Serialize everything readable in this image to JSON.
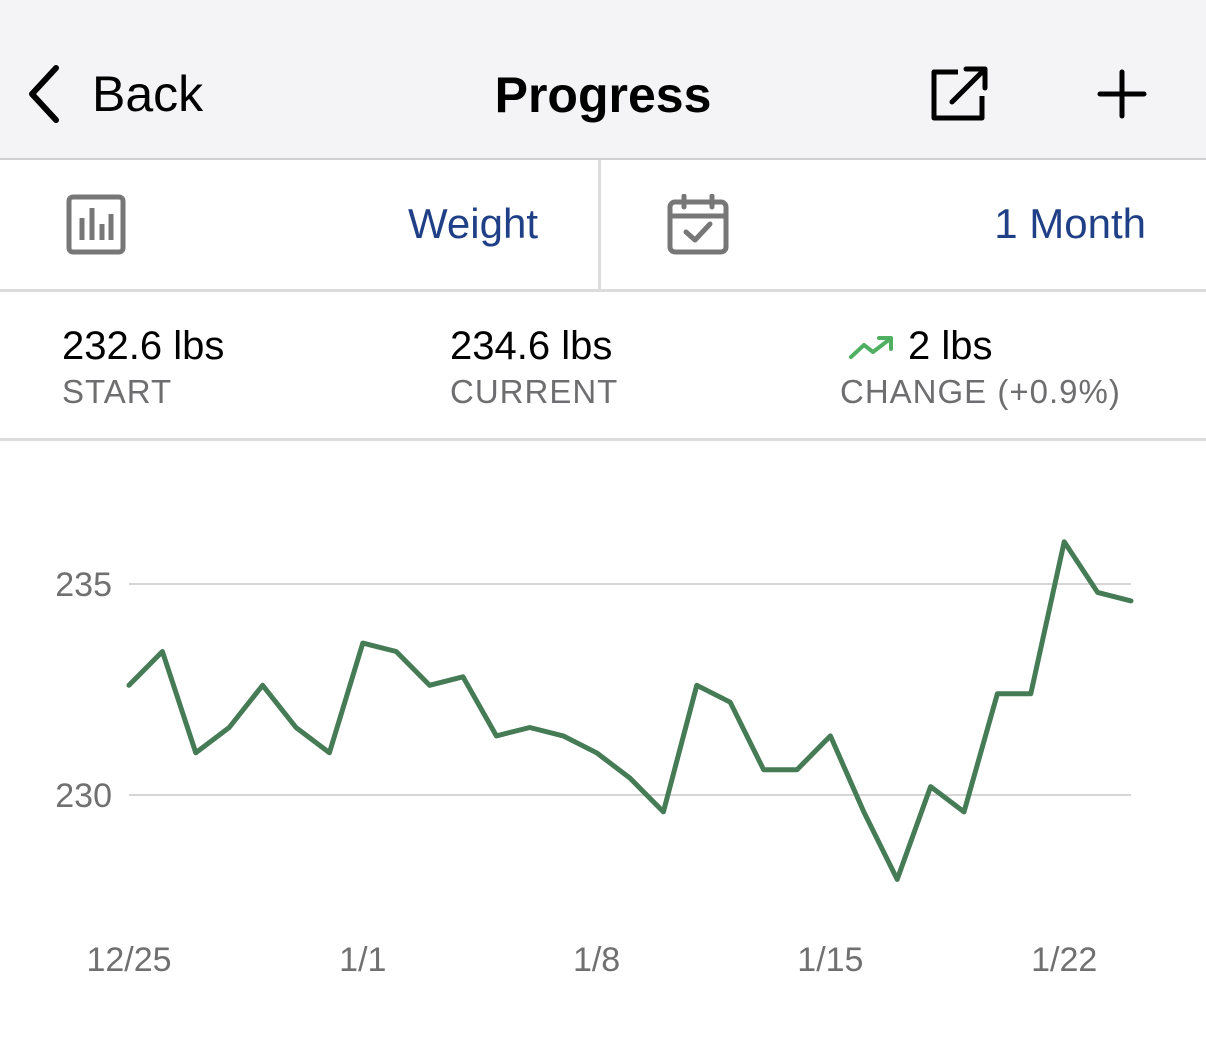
{
  "nav": {
    "back_label": "Back",
    "title": "Progress"
  },
  "selectors": {
    "metric": "Weight",
    "range": "1 Month"
  },
  "stats": {
    "start_value": "232.6 lbs",
    "start_label": "START",
    "current_value": "234.6 lbs",
    "current_label": "CURRENT",
    "change_value": "2 lbs",
    "change_label": "CHANGE (+0.9%)"
  },
  "colors": {
    "accent": "#1f3f86",
    "line": "#457b55",
    "trend_up": "#4fb061",
    "grid": "#d6d6d6"
  },
  "icons": {
    "back": "chevron-left-icon",
    "share": "share-icon",
    "add": "plus-icon",
    "metric": "bar-chart-icon",
    "range": "calendar-check-icon",
    "trend": "trend-up-icon"
  },
  "chart_data": {
    "type": "line",
    "title": "",
    "xlabel": "",
    "ylabel": "",
    "xlim": [
      "12/25",
      "1/24"
    ],
    "ylim": [
      227,
      237.5
    ],
    "yticks": [
      235,
      230
    ],
    "xticks": [
      "12/25",
      "1/1",
      "1/8",
      "1/15",
      "1/22"
    ],
    "grid": true,
    "series": [
      {
        "x": [
          "12/25",
          "12/26",
          "12/27",
          "12/28",
          "12/29",
          "12/30",
          "12/31",
          "1/1",
          "1/2",
          "1/3",
          "1/4",
          "1/5",
          "1/6",
          "1/7",
          "1/8",
          "1/9",
          "1/10",
          "1/11",
          "1/12",
          "1/13",
          "1/14",
          "1/15",
          "1/16",
          "1/17",
          "1/18",
          "1/19",
          "1/20",
          "1/21",
          "1/22",
          "1/23",
          "1/24"
        ],
        "values": [
          232.6,
          233.4,
          231.0,
          231.6,
          232.6,
          231.6,
          231.0,
          233.6,
          233.4,
          232.6,
          232.8,
          231.4,
          231.6,
          231.4,
          231.0,
          230.4,
          229.6,
          232.6,
          232.2,
          230.6,
          230.6,
          231.4,
          229.6,
          228.0,
          230.2,
          229.6,
          232.4,
          232.4,
          236.0,
          234.8,
          234.6
        ]
      }
    ]
  }
}
